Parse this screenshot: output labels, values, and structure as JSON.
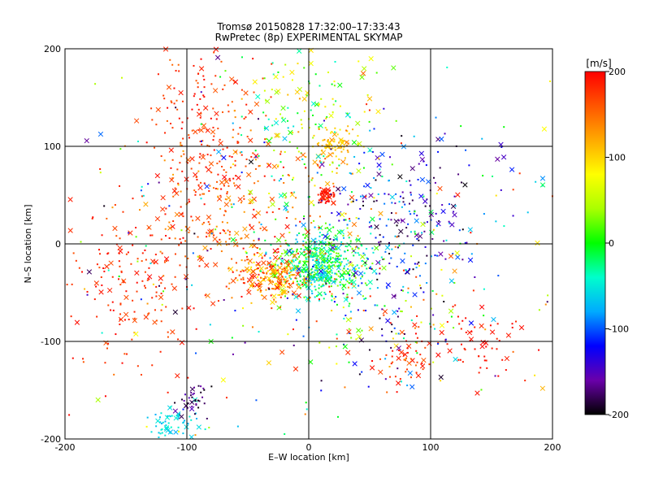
{
  "title_line1": "Tromsø 20150828 17:32:00–17:33:43",
  "title_line2": "RwPretec (8p) EXPERIMENTAL SKYMAP",
  "chart_data": {
    "type": "scatter",
    "xlabel": "E–W location [km]",
    "ylabel": "N–S location [km]",
    "xlim": [
      -200,
      200
    ],
    "ylim": [
      -200,
      200
    ],
    "xticks": [
      -200,
      -100,
      0,
      100,
      200
    ],
    "yticks": [
      -200,
      -100,
      0,
      100,
      200
    ],
    "grid": true,
    "colorbar": {
      "label": "[m/s]",
      "range": [
        -200,
        200
      ],
      "ticks": [
        200,
        100,
        0,
        -100,
        -200
      ],
      "colormap": [
        "#000000",
        "#6a00aa",
        "#0000ff",
        "#00aaff",
        "#00ffcc",
        "#00ff00",
        "#aaff00",
        "#ffff00",
        "#ffaa00",
        "#ff5500",
        "#ff0000"
      ]
    },
    "markers": [
      "dot",
      "cross"
    ],
    "clusters": [
      {
        "x": 10,
        "y": -20,
        "sx": 18,
        "sy": 16,
        "n": 520,
        "vmin": -80,
        "vmax": 40
      },
      {
        "x": -30,
        "y": -35,
        "sx": 14,
        "sy": 12,
        "n": 220,
        "vmin": 80,
        "vmax": 200
      },
      {
        "x": -85,
        "y": 120,
        "sx": 22,
        "sy": 50,
        "n": 200,
        "vmin": 150,
        "vmax": 200
      },
      {
        "x": 20,
        "y": 100,
        "sx": 8,
        "sy": 8,
        "n": 70,
        "vmin": 90,
        "vmax": 140
      },
      {
        "x": 15,
        "y": 50,
        "sx": 4,
        "sy": 4,
        "n": 50,
        "vmin": 180,
        "vmax": 200
      },
      {
        "x": 70,
        "y": 30,
        "sx": 35,
        "sy": 35,
        "n": 220,
        "vmin": -200,
        "vmax": -60
      },
      {
        "x": -110,
        "y": -185,
        "sx": 12,
        "sy": 10,
        "n": 60,
        "vmin": -80,
        "vmax": -40
      },
      {
        "x": -95,
        "y": -160,
        "sx": 10,
        "sy": 10,
        "n": 40,
        "vmin": -200,
        "vmax": -150
      },
      {
        "x": 140,
        "y": -100,
        "sx": 20,
        "sy": 20,
        "n": 60,
        "vmin": 180,
        "vmax": 200
      },
      {
        "x": 80,
        "y": -120,
        "sx": 10,
        "sy": 12,
        "n": 50,
        "vmin": 150,
        "vmax": 200
      },
      {
        "x": -140,
        "y": -40,
        "sx": 30,
        "sy": 45,
        "n": 180,
        "vmin": 160,
        "vmax": 200
      },
      {
        "x": 0,
        "y": 130,
        "sx": 30,
        "sy": 40,
        "n": 160,
        "vmin": -60,
        "vmax": 120
      },
      {
        "x": 60,
        "y": -60,
        "sx": 40,
        "sy": 40,
        "n": 160,
        "vmin": -200,
        "vmax": 200
      },
      {
        "x": -60,
        "y": 40,
        "sx": 40,
        "sy": 40,
        "n": 220,
        "vmin": 120,
        "vmax": 200
      },
      {
        "x": 0,
        "y": 0,
        "sx": 110,
        "sy": 110,
        "n": 380,
        "vmin": -200,
        "vmax": 200
      }
    ]
  }
}
